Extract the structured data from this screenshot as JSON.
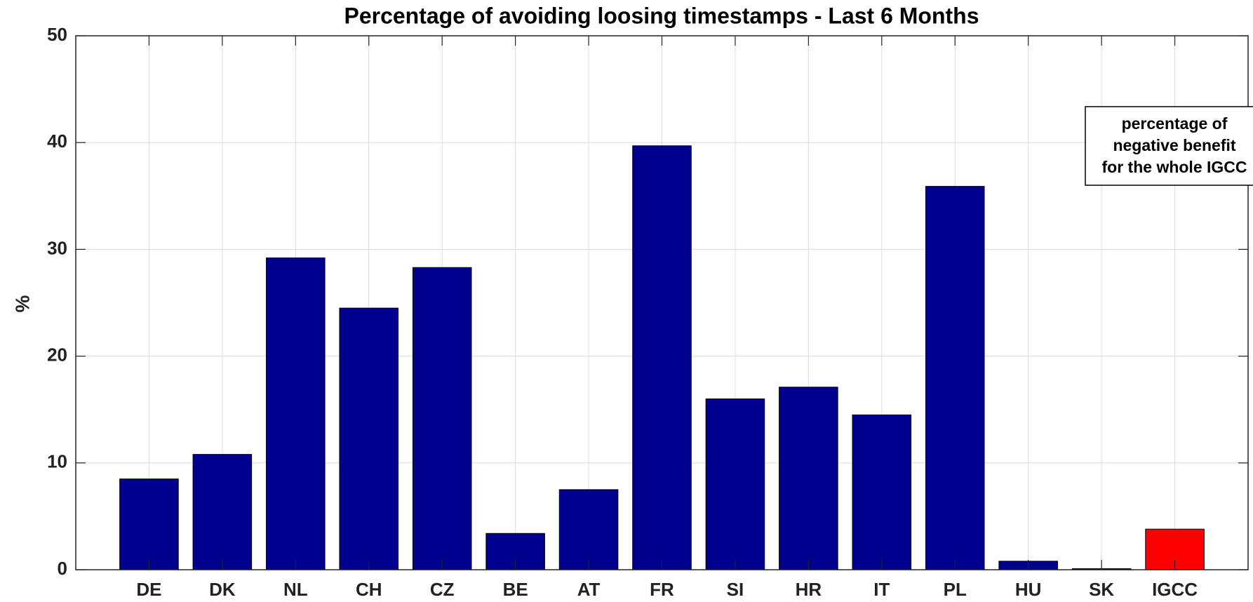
{
  "chart_data": {
    "type": "bar",
    "title": "Percentage of avoiding loosing timestamps - Last 6 Months",
    "y_label": "%",
    "categories": [
      "DE",
      "DK",
      "NL",
      "CH",
      "CZ",
      "BE",
      "AT",
      "FR",
      "SI",
      "HR",
      "IT",
      "PL",
      "HU",
      "SK",
      "IGCC"
    ],
    "values": [
      8.5,
      10.8,
      29.2,
      24.5,
      28.3,
      3.4,
      7.5,
      39.7,
      16.0,
      17.1,
      14.5,
      35.9,
      0.8,
      0.1,
      3.8
    ],
    "colors": [
      "#00008f",
      "#00008f",
      "#00008f",
      "#00008f",
      "#00008f",
      "#00008f",
      "#00008f",
      "#00008f",
      "#00008f",
      "#00008f",
      "#00008f",
      "#00008f",
      "#00008f",
      "#00008f",
      "#ff0000"
    ],
    "ylim": [
      0,
      50
    ],
    "yticks": [
      0,
      10,
      20,
      30,
      40,
      50
    ],
    "grid": true,
    "annotation": [
      "percentage of",
      "negative benefit",
      "for the whole IGCC"
    ]
  }
}
